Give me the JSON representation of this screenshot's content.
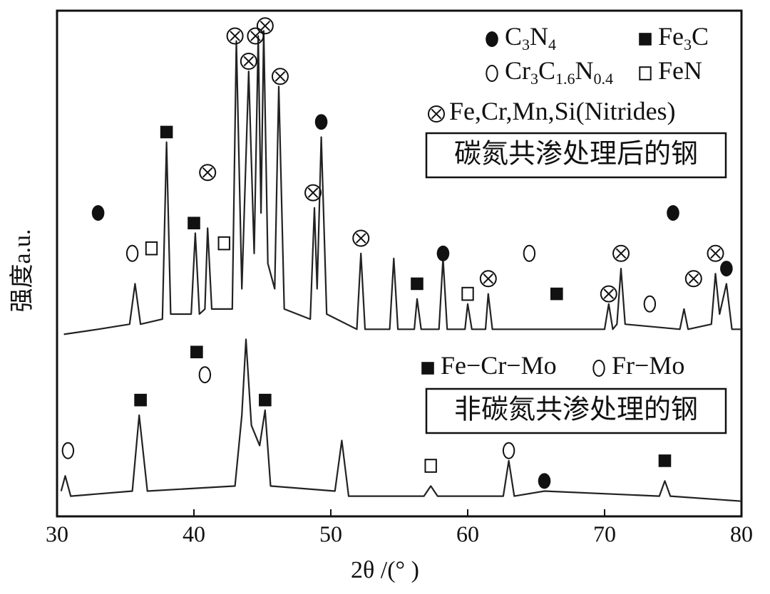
{
  "chart_data": {
    "type": "line",
    "xlabel": "2θ /(°  )",
    "ylabel": "强度a.u.",
    "xlim": [
      30,
      80
    ],
    "xticks": [
      30,
      40,
      50,
      60,
      70,
      80
    ],
    "ylim": [
      0,
      100
    ],
    "series": [
      {
        "color": "#222222",
        "x": [
          30.5,
          33,
          35.3,
          35.7,
          36.1,
          37.7,
          38,
          38.3,
          39.8,
          40.1,
          40.4,
          40.8,
          41,
          41.3,
          42.8,
          43.1,
          43.5,
          44,
          44.4,
          44.7,
          44.9,
          45.1,
          45.4,
          45.9,
          46.2,
          46.6,
          48.5,
          48.8,
          49.0,
          49.3,
          49.7,
          51.9,
          52.2,
          52.5,
          54.3,
          54.6,
          54.9,
          56.1,
          56.3,
          56.6,
          57.9,
          58.2,
          58.5,
          59.8,
          60,
          60.3,
          61.3,
          61.5,
          61.8,
          65,
          70,
          70.3,
          70.6,
          70.9,
          71.2,
          71.5,
          75.5,
          75.8,
          76.1,
          77.8,
          78.1,
          78.4,
          78.9,
          79.3,
          80
        ],
        "values": [
          36,
          37,
          38,
          46,
          38,
          39,
          74,
          40,
          40,
          56,
          40,
          41,
          57,
          41,
          41,
          94,
          45,
          88,
          52,
          95,
          60,
          96,
          50,
          45,
          85,
          41,
          39,
          61,
          45,
          75,
          40,
          37,
          52,
          37,
          37,
          51,
          37,
          37,
          43,
          37,
          37,
          51,
          37,
          37,
          42,
          37,
          37,
          44,
          37,
          37,
          37,
          42,
          37,
          38,
          49,
          38,
          37,
          41,
          37,
          38,
          48,
          40,
          46,
          37,
          37
        ],
        "label": "碳氮共渗处理后的钢"
      },
      {
        "color": "#222222",
        "x": [
          30.3,
          30.6,
          31,
          35.5,
          36,
          36.6,
          43,
          43.5,
          43.8,
          44.2,
          44.8,
          45.2,
          45.6,
          50.3,
          50.8,
          51.3,
          56.8,
          57.3,
          57.8,
          62.6,
          63,
          63.4,
          65.6,
          74,
          74.4,
          74.8,
          80
        ],
        "values": [
          5,
          8,
          4,
          5,
          20,
          5,
          6,
          20,
          35,
          18,
          14,
          21,
          6,
          5,
          15,
          4,
          4,
          6,
          4,
          4,
          11,
          4,
          5,
          4,
          7,
          4,
          3
        ],
        "label": "非碳氮共渗处理的钢"
      }
    ],
    "legends": [
      {
        "items": [
          {
            "symbol": "filled-circle",
            "text": [
              "C",
              "3",
              "N",
              "4"
            ]
          },
          {
            "symbol": "filled-square",
            "text": [
              "Fe",
              "3",
              "C"
            ]
          },
          {
            "symbol": "open-circle",
            "text": [
              "Cr",
              "3",
              "C",
              "1.6",
              "N",
              "0.4"
            ]
          },
          {
            "symbol": "open-square",
            "text": [
              "FeN"
            ]
          },
          {
            "symbol": "crossed-circle",
            "text": [
              "Fe,Cr,Mn,Si(Nitrides)"
            ]
          }
        ]
      },
      {
        "items": [
          {
            "symbol": "filled-square",
            "text": [
              "Fe−Cr−Mo"
            ]
          },
          {
            "symbol": "open-circle",
            "text": [
              "Fr−Mo"
            ]
          }
        ]
      }
    ],
    "markers": [
      {
        "symbol": "filled-circle",
        "x": 33,
        "y": 60
      },
      {
        "symbol": "open-circle",
        "x": 35.5,
        "y": 52
      },
      {
        "symbol": "open-square",
        "x": 36.9,
        "y": 53
      },
      {
        "symbol": "filled-square",
        "x": 38,
        "y": 76
      },
      {
        "symbol": "filled-square",
        "x": 40,
        "y": 58
      },
      {
        "symbol": "crossed-circle",
        "x": 41,
        "y": 68
      },
      {
        "symbol": "open-square",
        "x": 42.2,
        "y": 54
      },
      {
        "symbol": "crossed-circle",
        "x": 43,
        "y": 95
      },
      {
        "symbol": "crossed-circle",
        "x": 44,
        "y": 90
      },
      {
        "symbol": "crossed-circle",
        "x": 44.5,
        "y": 95
      },
      {
        "symbol": "crossed-circle",
        "x": 45.2,
        "y": 97
      },
      {
        "symbol": "crossed-circle",
        "x": 46.3,
        "y": 87
      },
      {
        "symbol": "crossed-circle",
        "x": 48.7,
        "y": 64
      },
      {
        "symbol": "filled-circle",
        "x": 49.3,
        "y": 78
      },
      {
        "symbol": "crossed-circle",
        "x": 52.2,
        "y": 55
      },
      {
        "symbol": "filled-square",
        "x": 56.3,
        "y": 46
      },
      {
        "symbol": "filled-circle",
        "x": 58.2,
        "y": 52
      },
      {
        "symbol": "open-square",
        "x": 60,
        "y": 44
      },
      {
        "symbol": "crossed-circle",
        "x": 61.5,
        "y": 47
      },
      {
        "symbol": "open-circle",
        "x": 64.5,
        "y": 52
      },
      {
        "symbol": "filled-square",
        "x": 66.5,
        "y": 44
      },
      {
        "symbol": "crossed-circle",
        "x": 70.3,
        "y": 44
      },
      {
        "symbol": "crossed-circle",
        "x": 71.2,
        "y": 52
      },
      {
        "symbol": "open-circle",
        "x": 73.3,
        "y": 42
      },
      {
        "symbol": "filled-circle",
        "x": 75,
        "y": 60
      },
      {
        "symbol": "crossed-circle",
        "x": 76.5,
        "y": 47
      },
      {
        "symbol": "crossed-circle",
        "x": 78.1,
        "y": 52
      },
      {
        "symbol": "filled-circle",
        "x": 78.9,
        "y": 49
      },
      {
        "symbol": "filled-square",
        "x": 40.2,
        "y": 32.5
      },
      {
        "symbol": "open-circle",
        "x": 40.8,
        "y": 28
      },
      {
        "symbol": "open-circle",
        "x": 30.8,
        "y": 13
      },
      {
        "symbol": "filled-square",
        "x": 36.1,
        "y": 23
      },
      {
        "symbol": "filled-square",
        "x": 45.2,
        "y": 23
      },
      {
        "symbol": "open-square",
        "x": 57.3,
        "y": 10
      },
      {
        "symbol": "open-circle",
        "x": 63,
        "y": 13
      },
      {
        "symbol": "filled-circle",
        "x": 65.6,
        "y": 7
      },
      {
        "symbol": "filled-square",
        "x": 74.4,
        "y": 11
      }
    ]
  }
}
